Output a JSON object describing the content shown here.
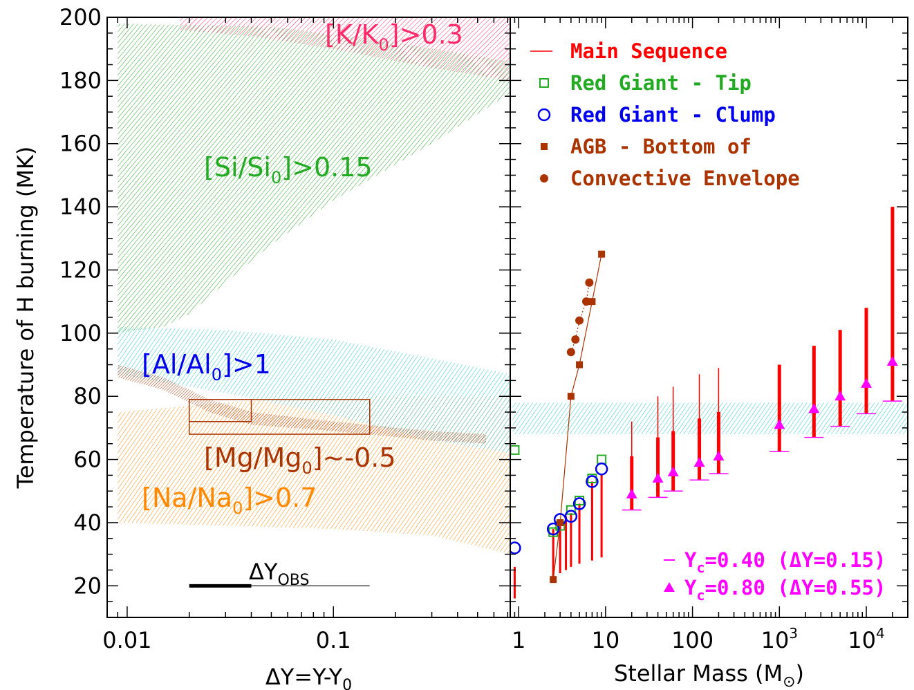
{
  "chart_data": [
    {
      "type": "area",
      "xscale": "log",
      "xlim": [
        0.008,
        0.72
      ],
      "ylim": [
        10,
        200
      ],
      "xlabel": "ΔY=Y-Y",
      "xlabel_sub": "0",
      "ylabel": "Temperature of H burning (MK)",
      "x_ticks": [
        {
          "v": 0.01,
          "label": "0.01"
        },
        {
          "v": 0.1,
          "label": "0.1"
        }
      ],
      "y_ticks": [
        20,
        40,
        60,
        80,
        100,
        120,
        140,
        160,
        180,
        200
      ],
      "regions": [
        {
          "main": "[K/K",
          "sub": "0",
          "tail": "]>0.3",
          "color": "#ff2a6a",
          "upper": [
            [
              0.018,
              200
            ],
            [
              0.72,
              200
            ]
          ],
          "lower": [
            [
              0.018,
              196
            ],
            [
              0.04,
              194
            ],
            [
              0.1,
              190
            ],
            [
              0.3,
              184
            ],
            [
              0.72,
              180
            ]
          ]
        },
        {
          "main": "[Si/Si",
          "sub": "0",
          "tail": "]>0.15",
          "color": "#22aa22",
          "upper": [
            [
              0.009,
              198
            ],
            [
              0.05,
              197
            ],
            [
              0.2,
              192
            ],
            [
              0.72,
              186
            ]
          ],
          "lower": [
            [
              0.009,
              100
            ],
            [
              0.015,
              102
            ],
            [
              0.02,
              106
            ],
            [
              0.03,
              116
            ],
            [
              0.05,
              128
            ],
            [
              0.1,
              142
            ],
            [
              0.3,
              160
            ],
            [
              0.72,
              176
            ]
          ]
        },
        {
          "main": "[Al/Al",
          "sub": "0",
          "tail": "]>1",
          "color": "#22cccc",
          "upper": [
            [
              0.009,
              102
            ],
            [
              0.03,
              101
            ],
            [
              0.1,
              98
            ],
            [
              0.3,
              92
            ],
            [
              0.72,
              87
            ]
          ],
          "lower": [
            [
              0.009,
              87
            ],
            [
              0.03,
              81
            ],
            [
              0.1,
              74
            ],
            [
              0.3,
              66
            ],
            [
              0.72,
              62
            ]
          ]
        },
        {
          "main": "[Na/Na",
          "sub": "0",
          "tail": "]>0.7",
          "color": "#ff8800",
          "upper": [
            [
              0.009,
              75
            ],
            [
              0.03,
              78
            ],
            [
              0.1,
              80
            ],
            [
              0.3,
              80
            ],
            [
              0.72,
              80
            ]
          ],
          "lower": [
            [
              0.009,
              40
            ],
            [
              0.03,
              39
            ],
            [
              0.1,
              38
            ],
            [
              0.3,
              36
            ],
            [
              0.72,
              30
            ]
          ]
        },
        {
          "main": "[Mg/Mg",
          "sub": "0",
          "tail": "]~-0.5",
          "color": "#aa3300",
          "upper": [
            [
              0.009,
              90
            ],
            [
              0.015,
              86
            ],
            [
              0.025,
              79
            ],
            [
              0.04,
              75
            ],
            [
              0.1,
              72
            ],
            [
              0.3,
              69
            ],
            [
              0.55,
              68
            ]
          ],
          "lower": [
            [
              0.009,
              86
            ],
            [
              0.015,
              82
            ],
            [
              0.025,
              75
            ],
            [
              0.04,
              71
            ],
            [
              0.1,
              69
            ],
            [
              0.3,
              66
            ],
            [
              0.55,
              65
            ]
          ]
        }
      ],
      "boxes": [
        {
          "x1": 0.02,
          "x2": 0.15,
          "y1": 68,
          "y2": 79
        },
        {
          "x1": 0.02,
          "x2": 0.04,
          "y1": 72,
          "y2": 79
        }
      ],
      "obs_label": "ΔY",
      "obs_sub": "OBS",
      "obs_range": {
        "y": 20,
        "thick": [
          0.02,
          0.04
        ],
        "thin": [
          0.04,
          0.15
        ]
      }
    },
    {
      "type": "scatter",
      "xscale": "log",
      "xlim": [
        0.8,
        30000
      ],
      "ylim": [
        10,
        200
      ],
      "xlabel": "Stellar Mass (M",
      "xlabel_sym": "⊙",
      "xlabel_end": ")",
      "x_ticks": [
        {
          "v": 1,
          "label": "1"
        },
        {
          "v": 10,
          "label": "10"
        },
        {
          "v": 100,
          "label": "100"
        },
        {
          "v": 1000,
          "label": "10",
          "sup": "3"
        },
        {
          "v": 10000,
          "label": "10",
          "sup": "4"
        }
      ],
      "legend": [
        {
          "marker": "line",
          "label": "Main Sequence",
          "color": "#ff0000"
        },
        {
          "marker": "open-square",
          "label": "Red Giant - Tip",
          "color": "#22aa22"
        },
        {
          "marker": "open-circle",
          "label": "Red Giant - Clump",
          "color": "#0000ee"
        },
        {
          "marker": "filled-square",
          "label": "AGB - Bottom of",
          "color": "#aa3300"
        },
        {
          "marker": "filled-circle",
          "label": "Convective Envelope",
          "color": "#aa3300"
        }
      ],
      "legend2": [
        {
          "marker": "dash",
          "pre": "Y",
          "sub": "c",
          "label": "=0.40 (ΔY=0.15)",
          "color": "#ff00ff"
        },
        {
          "marker": "triangle",
          "pre": "Y",
          "sub": "c",
          "label": "=0.80 (ΔY=0.55)",
          "color": "#ff00ff"
        }
      ],
      "aluminum_band": {
        "x": [
          0.85,
          30000
        ],
        "y": [
          68,
          78
        ],
        "color": "#22cccc"
      },
      "main_sequence": [
        {
          "m": 0.9,
          "lo": 16,
          "hi": 26
        },
        {
          "m": 2.5,
          "lo": 22,
          "hi": 38
        },
        {
          "m": 3,
          "lo": 24,
          "hi": 40
        },
        {
          "m": 3.5,
          "lo": 25,
          "hi": 42
        },
        {
          "m": 4,
          "lo": 26,
          "hi": 43
        },
        {
          "m": 5,
          "lo": 27,
          "hi": 46
        },
        {
          "m": 7,
          "lo": 28,
          "hi": 53
        },
        {
          "m": 9,
          "lo": 29,
          "hi": 55
        }
      ],
      "ms_bars": [
        {
          "m": 20,
          "y040": 44,
          "y080": 49,
          "top": 72,
          "thick_top": 61
        },
        {
          "m": 40,
          "y040": 48,
          "y080": 54,
          "top": 80,
          "thick_top": 67
        },
        {
          "m": 60,
          "y040": 50,
          "y080": 56,
          "top": 83,
          "thick_top": 69
        },
        {
          "m": 120,
          "y040": 53.5,
          "y080": 59,
          "top": 87,
          "thick_top": 73
        },
        {
          "m": 200,
          "y040": 55.5,
          "y080": 61,
          "top": 89,
          "thick_top": 75
        },
        {
          "m": 1000,
          "y040": 62.5,
          "y080": 71,
          "top": 90,
          "thick_top": 90
        },
        {
          "m": 2500,
          "y040": 67,
          "y080": 76,
          "top": 96,
          "thick_top": 96
        },
        {
          "m": 5000,
          "y040": 70.5,
          "y080": 80,
          "top": 101,
          "thick_top": 101
        },
        {
          "m": 10000,
          "y040": 74.5,
          "y080": 84,
          "top": 108,
          "thick_top": 108
        },
        {
          "m": 20000,
          "y040": 78.5,
          "y080": 91,
          "top": 140,
          "thick_top": 140
        }
      ],
      "rgb_tip": [
        [
          0.9,
          63
        ],
        [
          2.5,
          37
        ],
        [
          3,
          39
        ],
        [
          4,
          44
        ],
        [
          5,
          47
        ],
        [
          7,
          54
        ],
        [
          9,
          60
        ]
      ],
      "rgb_clump": [
        [
          0.9,
          32
        ],
        [
          2.5,
          38
        ],
        [
          3,
          41
        ],
        [
          4,
          42
        ],
        [
          5,
          46
        ],
        [
          7,
          53
        ],
        [
          9,
          57
        ]
      ],
      "agb_squares": [
        [
          2.5,
          22
        ],
        [
          3,
          40
        ],
        [
          4,
          80
        ],
        [
          5,
          90
        ],
        [
          7,
          110
        ],
        [
          9,
          125
        ]
      ],
      "agb_circles": [
        [
          4,
          94
        ],
        [
          4.5,
          98
        ],
        [
          5,
          104
        ],
        [
          6,
          110
        ],
        [
          6.5,
          116
        ]
      ]
    }
  ]
}
